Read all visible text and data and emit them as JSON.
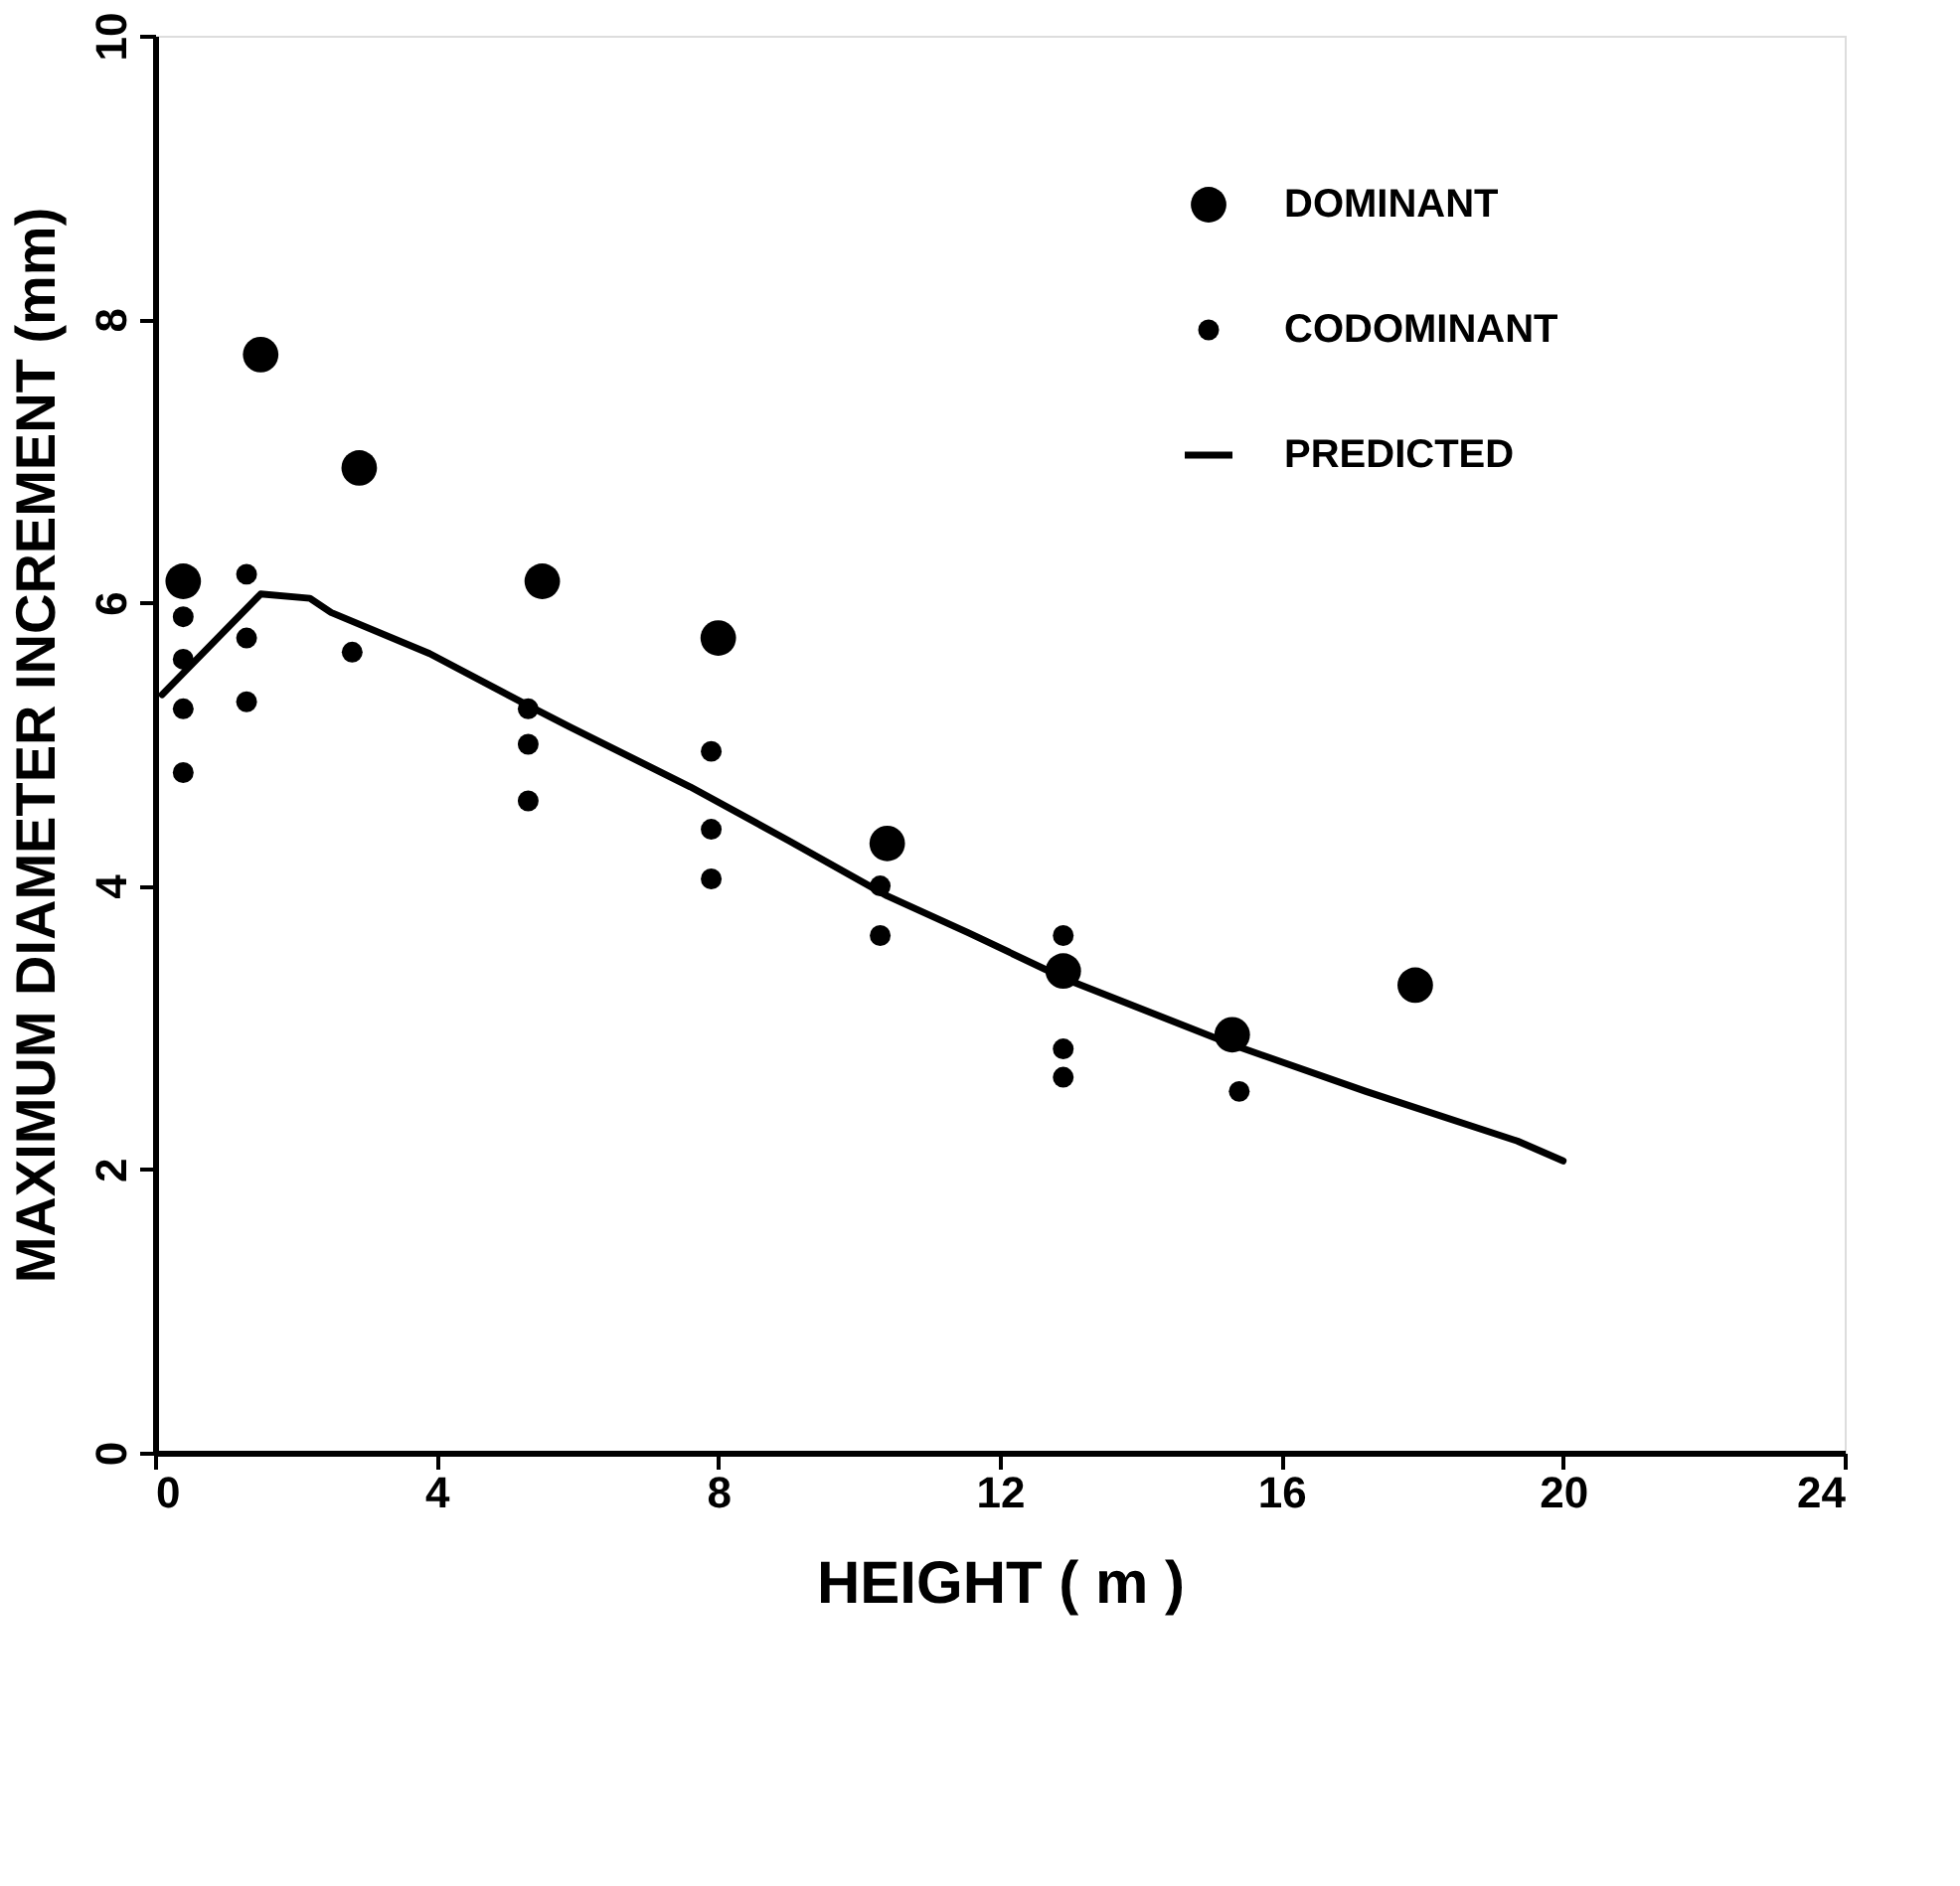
{
  "chart_data": {
    "type": "scatter",
    "xlabel": "HEIGHT ( m )",
    "ylabel": "MAXIMUM DIAMETER INCREMENT (mm)",
    "xlim": [
      0,
      24
    ],
    "xticks": [
      0,
      4,
      8,
      12,
      16,
      20,
      24
    ],
    "ylim": [
      0,
      10
    ],
    "yticks": [
      0,
      2,
      4,
      6,
      8,
      10
    ],
    "grid": false,
    "legend": "top right",
    "series": [
      {
        "name": "DOMINANT",
        "marker": "circle",
        "color": "#000000",
        "x": [
          0.4,
          1.5,
          2.9,
          5.5,
          8.0,
          10.4,
          12.9,
          15.3,
          17.9
        ],
        "values": [
          6.15,
          7.75,
          6.95,
          6.15,
          5.75,
          4.3,
          3.4,
          2.95,
          3.3
        ]
      },
      {
        "name": "CODOMINANT",
        "marker": "circle",
        "color": "#000000",
        "x": [
          0.4,
          0.4,
          0.4,
          0.4,
          1.3,
          1.3,
          1.3,
          2.8,
          5.3,
          5.3,
          5.3,
          7.9,
          7.9,
          7.9,
          10.3,
          10.3,
          12.9,
          12.9,
          12.9,
          15.4
        ],
        "values": [
          5.9,
          5.6,
          5.25,
          4.8,
          6.2,
          5.75,
          5.3,
          5.65,
          5.25,
          5.0,
          4.6,
          4.95,
          4.4,
          4.05,
          4.0,
          3.65,
          3.65,
          2.85,
          2.65,
          2.55
        ]
      },
      {
        "name": "PREDICTED",
        "type": "line",
        "color": "#000000",
        "line_style": "solid",
        "x": [
          0.1,
          1.5,
          2.2,
          2.5,
          3.9,
          5.35,
          5.9,
          7.6,
          9.0,
          10.4,
          11.55,
          12.95,
          15.3,
          17.2,
          19.35,
          20.0
        ],
        "values": [
          5.35,
          6.06,
          6.03,
          5.93,
          5.64,
          5.26,
          5.12,
          4.7,
          4.32,
          3.93,
          3.67,
          3.34,
          2.88,
          2.55,
          2.2,
          2.06
        ]
      }
    ]
  }
}
